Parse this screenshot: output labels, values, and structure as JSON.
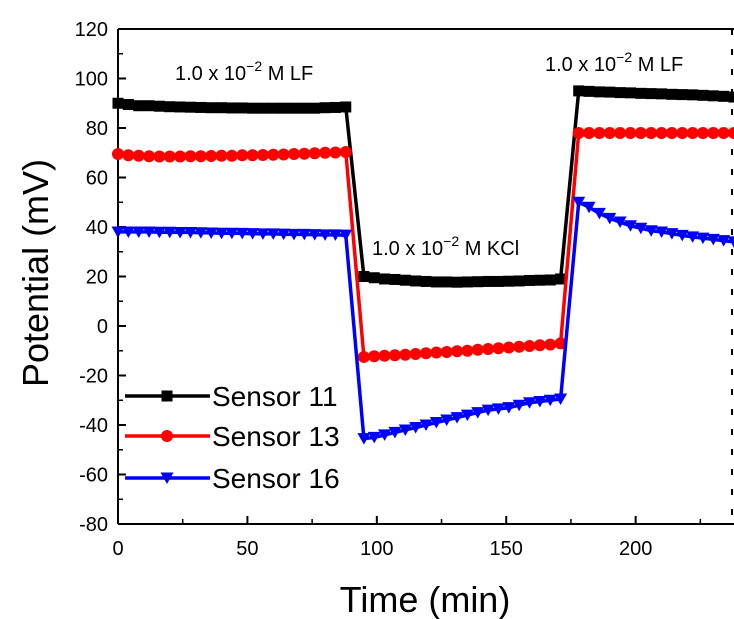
{
  "chart_data": {
    "type": "line",
    "xlabel": "Time (min)",
    "ylabel": "Potential (mV)",
    "xlim": [
      0,
      238
    ],
    "ylim": [
      -80,
      120
    ],
    "xticks": [
      0,
      50,
      100,
      150,
      200
    ],
    "yticks": [
      -80,
      -60,
      -40,
      -20,
      0,
      20,
      40,
      60,
      80,
      100,
      120
    ],
    "legend_position": "bottom-left",
    "annotations": [
      {
        "text": "1.0 x 10",
        "sup": "−2",
        "suffix": " M LF"
      },
      {
        "text": "1.0 x 10",
        "sup": "−2",
        "suffix": " M KCl"
      },
      {
        "text": "1.0 x 10",
        "sup": "−2",
        "suffix": " M LF"
      }
    ],
    "series": [
      {
        "name": "Sensor 11",
        "color": "#000000",
        "marker": "square",
        "x": [
          0,
          4,
          8,
          12,
          16,
          20,
          24,
          28,
          32,
          36,
          40,
          44,
          48,
          52,
          56,
          60,
          64,
          68,
          72,
          76,
          80,
          84,
          88,
          95,
          99,
          103,
          107,
          111,
          115,
          119,
          123,
          127,
          131,
          135,
          139,
          143,
          147,
          151,
          155,
          159,
          163,
          167,
          171,
          178,
          182,
          186,
          190,
          194,
          198,
          202,
          206,
          210,
          214,
          218,
          222,
          226,
          230,
          234,
          238
        ],
        "y": [
          90,
          89.5,
          89,
          89,
          88.8,
          88.6,
          88.5,
          88.4,
          88.3,
          88.2,
          88.2,
          88.1,
          88.1,
          88,
          88,
          88,
          88,
          88,
          88,
          88,
          88.2,
          88.3,
          88.5,
          20,
          19.5,
          19,
          18.8,
          18.5,
          18.2,
          18,
          17.8,
          17.8,
          17.7,
          17.8,
          17.9,
          18,
          18,
          18.1,
          18.2,
          18.4,
          18.5,
          18.6,
          19,
          95,
          94.8,
          94.6,
          94.5,
          94.3,
          94.2,
          94,
          93.9,
          93.8,
          93.6,
          93.5,
          93.4,
          93.2,
          93,
          92.8,
          92.5
        ]
      },
      {
        "name": "Sensor 13",
        "color": "#ff0000",
        "marker": "circle",
        "x": [
          0,
          4,
          8,
          12,
          16,
          20,
          24,
          28,
          32,
          36,
          40,
          44,
          48,
          52,
          56,
          60,
          64,
          68,
          72,
          76,
          80,
          84,
          88,
          95,
          99,
          103,
          107,
          111,
          115,
          119,
          123,
          127,
          131,
          135,
          139,
          143,
          147,
          151,
          155,
          159,
          163,
          167,
          171,
          178,
          182,
          186,
          190,
          194,
          198,
          202,
          206,
          210,
          214,
          218,
          222,
          226,
          230,
          234,
          238
        ],
        "y": [
          69.5,
          69,
          68.8,
          68.6,
          68.5,
          68.5,
          68.5,
          68.6,
          68.6,
          68.7,
          68.8,
          68.8,
          69,
          69,
          69.1,
          69.2,
          69.3,
          69.5,
          69.6,
          69.8,
          70,
          70.1,
          70.3,
          -12.5,
          -12.2,
          -12,
          -11.8,
          -11.6,
          -11.3,
          -11,
          -10.7,
          -10.5,
          -10.2,
          -10,
          -9.6,
          -9.3,
          -9,
          -8.7,
          -8.4,
          -8.1,
          -7.8,
          -7.5,
          -7,
          78,
          78,
          78,
          78,
          78,
          78,
          78,
          78,
          78,
          78,
          78,
          78,
          78,
          78,
          78,
          78
        ]
      },
      {
        "name": "Sensor 16",
        "color": "#0000ff",
        "marker": "triangle-down",
        "x": [
          0,
          4,
          8,
          12,
          16,
          20,
          24,
          28,
          32,
          36,
          40,
          44,
          48,
          52,
          56,
          60,
          64,
          68,
          72,
          76,
          80,
          84,
          88,
          95,
          99,
          103,
          107,
          111,
          115,
          119,
          123,
          127,
          131,
          135,
          139,
          143,
          147,
          151,
          155,
          159,
          163,
          167,
          171,
          178,
          182,
          186,
          190,
          194,
          198,
          202,
          206,
          210,
          214,
          218,
          222,
          226,
          230,
          234,
          238
        ],
        "y": [
          38,
          38,
          38,
          38,
          37.9,
          37.9,
          37.8,
          37.8,
          37.7,
          37.6,
          37.5,
          37.5,
          37.4,
          37.3,
          37.2,
          37.2,
          37.1,
          37,
          37,
          36.9,
          36.8,
          36.8,
          36.7,
          -45.5,
          -45,
          -44,
          -43,
          -42,
          -41,
          -40,
          -39,
          -38,
          -37,
          -36,
          -35,
          -34,
          -33.5,
          -33,
          -32,
          -31,
          -30.5,
          -30,
          -29.5,
          50,
          48,
          45.5,
          43.5,
          42,
          40.5,
          39.5,
          38.5,
          38,
          37.3,
          36.6,
          36,
          35.5,
          35,
          34.5,
          34
        ]
      }
    ]
  }
}
